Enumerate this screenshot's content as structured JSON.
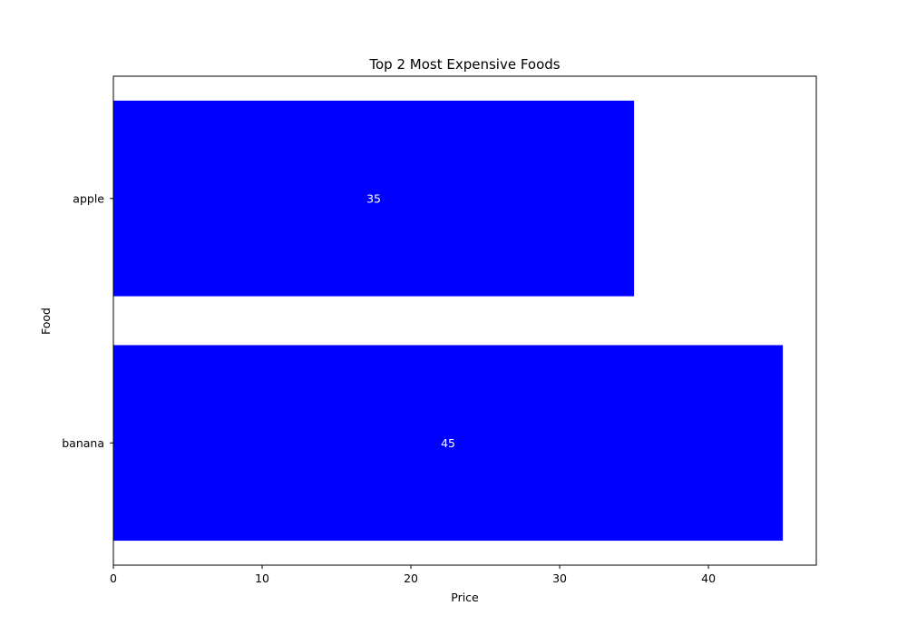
{
  "chart_data": {
    "type": "bar",
    "orientation": "horizontal",
    "title": "Top 2 Most Expensive Foods",
    "xlabel": "Price",
    "ylabel": "Food",
    "categories": [
      "apple",
      "banana"
    ],
    "values": [
      35,
      45
    ],
    "data_labels": [
      "35",
      "45"
    ],
    "xlim": [
      0,
      47.25
    ],
    "xticks": [
      0,
      10,
      20,
      30,
      40
    ],
    "bar_color": "#0000ff",
    "data_label_color": "#ffffff",
    "grid": false,
    "legend": "none"
  }
}
